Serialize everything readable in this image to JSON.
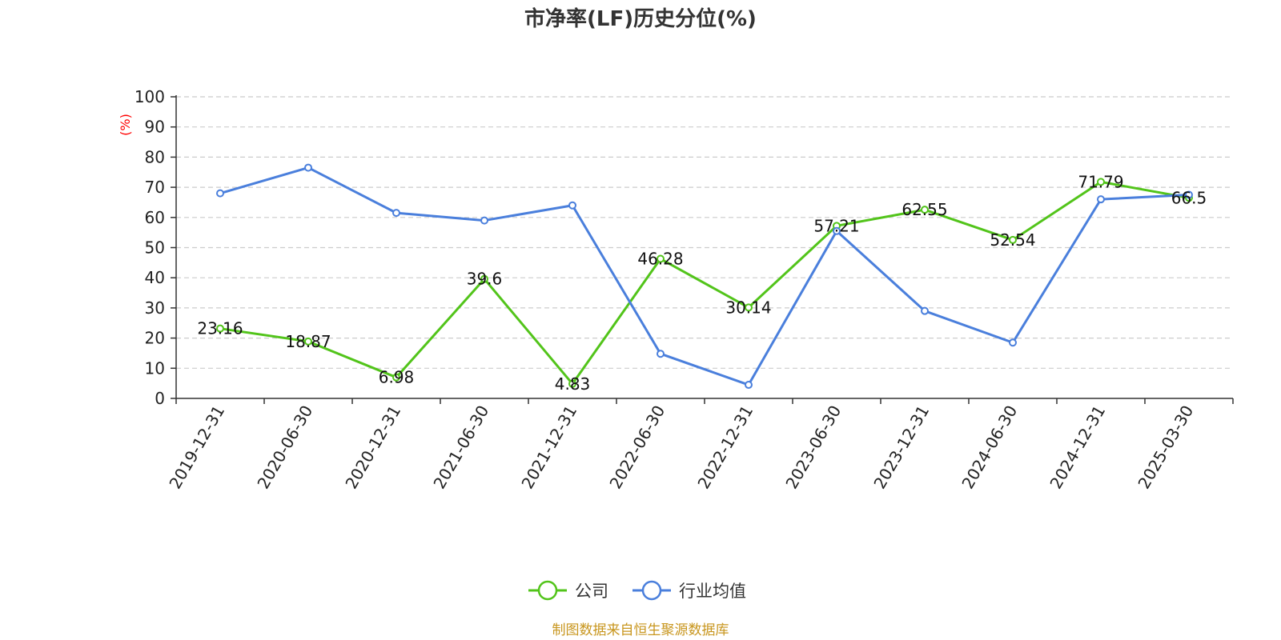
{
  "chart_data": {
    "type": "line",
    "title": "市净率(LF)历史分位(%)",
    "ylabel": "(%)",
    "ylim": [
      0,
      100
    ],
    "yticks": [
      0,
      10,
      20,
      30,
      40,
      50,
      60,
      70,
      80,
      90,
      100
    ],
    "categories": [
      "2019-12-31",
      "2020-06-30",
      "2020-12-31",
      "2021-06-30",
      "2021-12-31",
      "2022-06-30",
      "2022-12-31",
      "2023-06-30",
      "2023-12-31",
      "2024-06-30",
      "2024-12-31",
      "2025-03-30"
    ],
    "series": [
      {
        "name": "公司",
        "color": "#52c41a",
        "values": [
          23.16,
          18.87,
          6.98,
          39.6,
          4.83,
          46.28,
          30.14,
          57.21,
          62.55,
          52.54,
          71.79,
          66.5
        ],
        "labels": [
          "23.16",
          "18.87",
          "6.98",
          "39.6",
          "4.83",
          "46.28",
          "30.14",
          "57.21",
          "62.55",
          "52.54",
          "71.79",
          "66.5"
        ]
      },
      {
        "name": "行业均值",
        "color": "#4a7fdc",
        "values": [
          68,
          76.5,
          61.5,
          59,
          64,
          14.8,
          4.5,
          55.5,
          29,
          18.5,
          66,
          67.5
        ]
      }
    ],
    "grid": true,
    "legend_position": "bottom-center"
  },
  "source_text": "制图数据来自恒生聚源数据库"
}
